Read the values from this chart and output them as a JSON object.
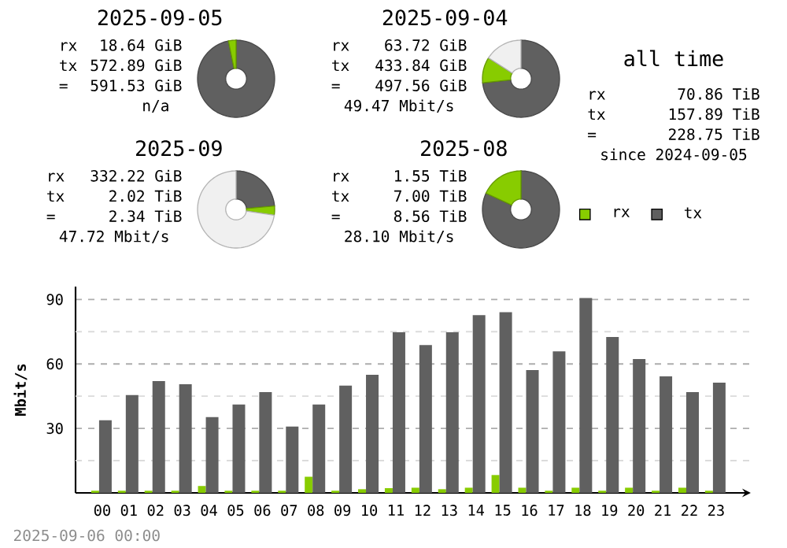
{
  "chart_data": [
    {
      "type": "donut",
      "title": "2025-09-05",
      "categories": [
        null,
        null
      ],
      "values": [
        96.8,
        3.2
      ],
      "colors": [
        "#606060",
        "#88cc00"
      ],
      "annotations": [
        "rx",
        "18.64 GiB",
        "tx",
        "572.89 GiB",
        "=",
        "591.53 GiB",
        "n/a"
      ]
    },
    {
      "type": "donut",
      "title": "2025-09-04",
      "categories": [
        null,
        null,
        null
      ],
      "values": [
        73.3,
        10.8,
        15.9
      ],
      "colors": [
        "#606060",
        "#88cc00",
        "#f0f0f0"
      ],
      "annotations": [
        "rx",
        "63.72 GiB",
        "tx",
        "433.84 GiB",
        "=",
        "497.56 GiB",
        "49.47 Mbit/s"
      ]
    },
    {
      "type": "donut",
      "title": "2025-09",
      "categories": [
        null,
        null,
        null
      ],
      "values": [
        23.6,
        3.8,
        72.6
      ],
      "colors": [
        "#606060",
        "#88cc00",
        "#f0f0f0"
      ],
      "annotations": [
        "rx",
        "332.22 GiB",
        "tx",
        "2.02 TiB",
        "=",
        "2.34 TiB",
        "47.72 Mbit/s"
      ]
    },
    {
      "type": "donut",
      "title": "2025-08",
      "categories": [
        null,
        null
      ],
      "values": [
        81.9,
        18.1
      ],
      "colors": [
        "#606060",
        "#88cc00"
      ],
      "annotations": [
        "rx",
        "1.55 TiB",
        "tx",
        "7.00 TiB",
        "=",
        "8.56 TiB",
        "28.10 Mbit/s"
      ]
    },
    {
      "type": "other",
      "title": "all time",
      "annotations": [
        "rx",
        "70.86 TiB",
        "tx",
        "157.89 TiB",
        "=",
        "228.75 TiB",
        "since 2024-09-05"
      ]
    },
    {
      "type": "bar",
      "categories": [
        "00",
        "01",
        "02",
        "03",
        "04",
        "05",
        "06",
        "07",
        "08",
        "09",
        "10",
        "11",
        "12",
        "13",
        "14",
        "15",
        "16",
        "17",
        "18",
        "19",
        "20",
        "21",
        "22",
        "23"
      ],
      "series": [
        {
          "name": "rx",
          "color": "#88cc00",
          "values": [
            1.0,
            1.0,
            1.0,
            1.0,
            3.2,
            1.0,
            1.0,
            1.0,
            7.5,
            1.0,
            1.7,
            2.2,
            2.4,
            1.7,
            2.4,
            8.3,
            2.4,
            1.0,
            2.4,
            1.0,
            2.4,
            1.0,
            2.4,
            1.0
          ]
        },
        {
          "name": "tx",
          "color": "#606060",
          "values": [
            33.8,
            45.5,
            52.0,
            50.6,
            35.3,
            41.1,
            46.9,
            30.9,
            41.1,
            49.9,
            55.0,
            74.7,
            68.8,
            74.7,
            82.7,
            84.1,
            57.2,
            65.9,
            90.7,
            72.5,
            62.3,
            54.2,
            46.9,
            51.3
          ]
        }
      ],
      "ylabel": "Mbit/s",
      "ylim": [
        0,
        96
      ],
      "yticks": [
        {
          "value": 15,
          "label": null
        },
        30,
        {
          "value": 45,
          "label": null
        },
        60,
        {
          "value": 75,
          "label": null
        },
        90
      ],
      "grid": "y",
      "legend": "top right",
      "annotations": [
        "2025-09-06 00:00"
      ]
    }
  ]
}
